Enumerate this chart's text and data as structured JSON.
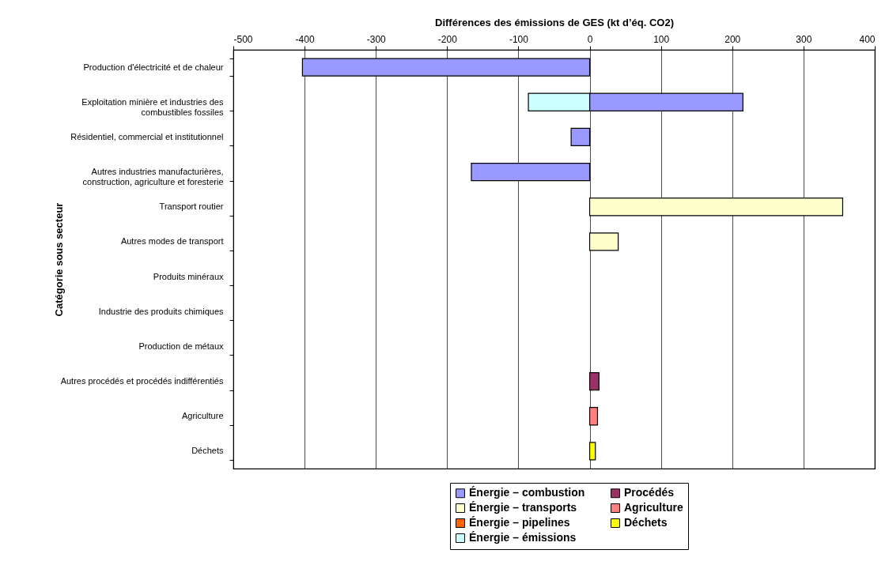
{
  "chart_data": {
    "type": "bar",
    "orientation": "horizontal",
    "stacked": true,
    "xlabel": "Différences des émissions de GES (kt d’éq. CO2)",
    "ylabel": "Catégorie sous secteur",
    "categories": [
      "Production d'électricité et de chaleur",
      "Exploitation minière et industries des combustibles fossiles",
      "Résidentiel, commercial et institutionnel",
      "Autres industries manufacturières, construction, agriculture et foresterie",
      "Transport routier",
      "Autres modes de transport",
      "Produits minéraux",
      "Industrie des produits chimiques",
      "Production de métaux",
      "Autres procédés et procédés indifférentiés",
      "Agriculture",
      "Déchets"
    ],
    "series": [
      {
        "name": "Énergie – combustion",
        "color": "#9999ff",
        "values": [
          -403,
          215,
          -26,
          -166,
          null,
          null,
          null,
          null,
          null,
          null,
          null,
          null
        ]
      },
      {
        "name": "Énergie – transports",
        "color": "#ffffcc",
        "values": [
          null,
          null,
          null,
          null,
          355,
          40,
          null,
          null,
          null,
          null,
          null,
          null
        ]
      },
      {
        "name": "Énergie – pipelines",
        "color": "#ff6600",
        "values": [
          null,
          null,
          null,
          null,
          null,
          null,
          null,
          null,
          null,
          null,
          null,
          null
        ]
      },
      {
        "name": "Énergie – émissions",
        "color": "#ccffff",
        "values": [
          null,
          -86,
          null,
          null,
          null,
          null,
          null,
          null,
          null,
          null,
          null,
          null
        ]
      },
      {
        "name": "Procédés",
        "color": "#993366",
        "values": [
          null,
          null,
          null,
          null,
          null,
          null,
          null,
          null,
          null,
          13,
          null,
          null
        ]
      },
      {
        "name": "Agriculture",
        "color": "#ff8080",
        "values": [
          null,
          null,
          null,
          null,
          null,
          null,
          null,
          null,
          null,
          null,
          11,
          null
        ]
      },
      {
        "name": "Déchets",
        "color": "#ffff00",
        "values": [
          null,
          null,
          null,
          null,
          null,
          null,
          null,
          null,
          null,
          null,
          null,
          8
        ]
      }
    ],
    "xlim": [
      -500,
      400
    ],
    "xticks": [
      -500,
      -400,
      -300,
      -200,
      -100,
      0,
      100,
      200,
      300,
      400
    ],
    "grid": "x",
    "legend": "bottom"
  }
}
